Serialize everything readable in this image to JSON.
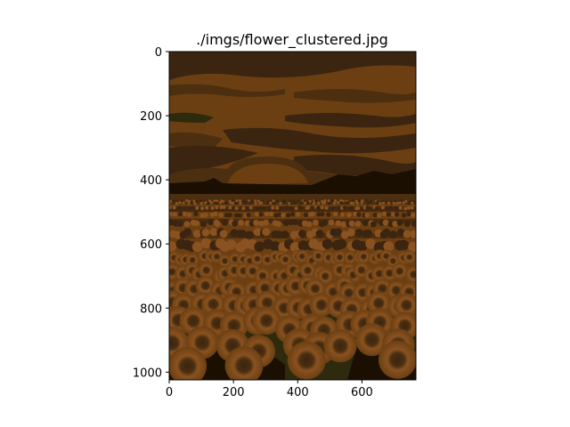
{
  "chart_data": {
    "type": "image",
    "title": "./imgs/flower_clustered.jpg",
    "xlabel": "",
    "ylabel": "",
    "xlim": [
      0,
      768
    ],
    "ylim": [
      1024,
      0
    ],
    "x_ticks": [
      0,
      200,
      400,
      600
    ],
    "y_ticks": [
      0,
      200,
      400,
      600,
      800,
      1000
    ],
    "y_axis_inverted": true,
    "grid": false,
    "image_description_colors": {
      "darkest": "#1b0f02",
      "dark": "#3b2410",
      "mid_dark": "#4b2f10",
      "mid": "#6b3f12",
      "light": "#8a5220",
      "green_shadow": "#2e2a0e"
    }
  }
}
